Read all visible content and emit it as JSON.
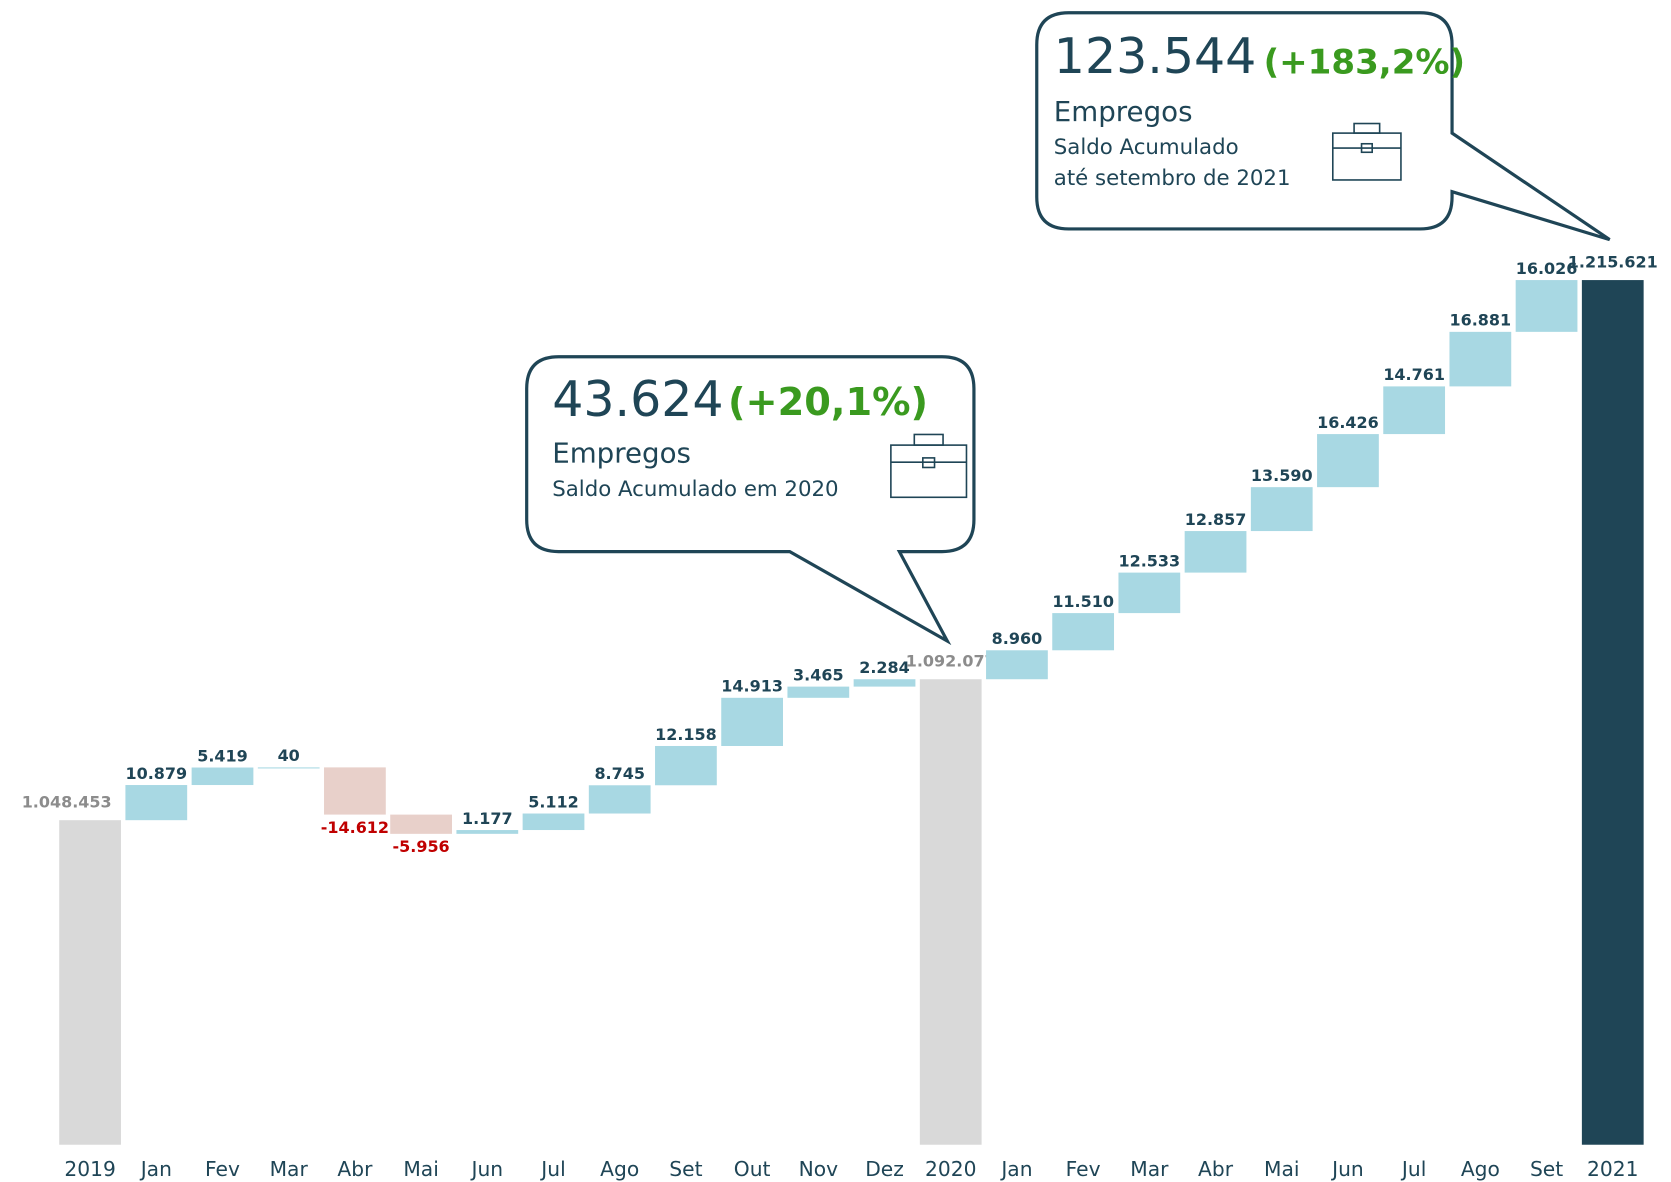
{
  "chart_data": {
    "type": "waterfall",
    "categories": [
      "2019",
      "Jan",
      "Fev",
      "Mar",
      "Abr",
      "Mai",
      "Jun",
      "Jul",
      "Ago",
      "Set",
      "Out",
      "Nov",
      "Dez",
      "2020",
      "Jan",
      "Fev",
      "Mar",
      "Abr",
      "Mai",
      "Jun",
      "Jul",
      "Ago",
      "Set",
      "2021"
    ],
    "values": [
      1048453,
      10879,
      5419,
      40,
      -14612,
      -5956,
      1177,
      5112,
      8745,
      12158,
      14913,
      3465,
      2284,
      1092077,
      8960,
      11510,
      12533,
      12857,
      13590,
      16426,
      14761,
      16881,
      16026,
      1215621
    ],
    "value_labels": [
      "1.048.453",
      "10.879",
      "5.419",
      "40",
      "-14.612",
      "-5.956",
      "1.177",
      "5.112",
      "8.745",
      "12.158",
      "14.913",
      "3.465",
      "2.284",
      "1.092.077",
      "8.960",
      "11.510",
      "12.533",
      "12.857",
      "13.590",
      "16.426",
      "14.761",
      "16.881",
      "16.026",
      "1.215.621"
    ],
    "totals": [
      0,
      13,
      23
    ],
    "colors": [
      "#d9d9d9",
      "#a8d8e3",
      "#a8d8e3",
      "#a8d8e3",
      "#e8d0ca",
      "#e8d0ca",
      "#a8d8e3",
      "#a8d8e3",
      "#a8d8e3",
      "#a8d8e3",
      "#a8d8e3",
      "#a8d8e3",
      "#a8d8e3",
      "#d9d9d9",
      "#a8d8e3",
      "#a8d8e3",
      "#a8d8e3",
      "#a8d8e3",
      "#a8d8e3",
      "#a8d8e3",
      "#a8d8e3",
      "#a8d8e3",
      "#a8d8e3",
      "#1f4556"
    ],
    "ylim": [
      948000,
      1300000
    ],
    "annotations": [
      {
        "value": "43.624",
        "change": "(+20,1%)",
        "title": "Empregos",
        "lines": [
          "Saldo Acumulado em 2020"
        ]
      },
      {
        "value": "123.544",
        "change": "(+183,2%)",
        "title": "Empregos",
        "lines": [
          "Saldo Acumulado",
          "até setembro de 2021"
        ]
      }
    ]
  }
}
